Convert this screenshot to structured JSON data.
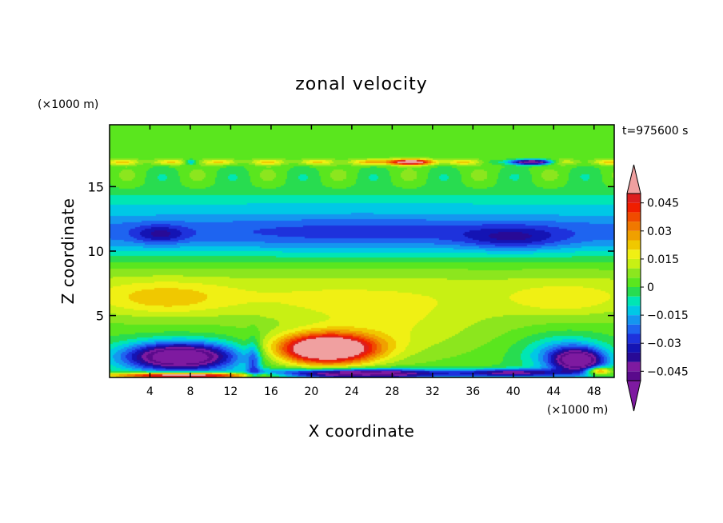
{
  "chart_data": {
    "type": "heatmap",
    "title": "zonal velocity",
    "xlabel": "X coordinate",
    "ylabel": "Z coordinate",
    "x_units": "(×1000 m)",
    "y_units": "(×1000 m)",
    "time_label": "t=975600 s",
    "xlim": [
      0,
      50
    ],
    "ylim": [
      0.2,
      19.8
    ],
    "x_ticks": [
      "4",
      "8",
      "12",
      "16",
      "20",
      "24",
      "28",
      "32",
      "36",
      "40",
      "44",
      "48"
    ],
    "x_tick_values": [
      4,
      8,
      12,
      16,
      20,
      24,
      28,
      32,
      36,
      40,
      44,
      48
    ],
    "y_ticks": [
      "5",
      "10",
      "15"
    ],
    "y_tick_values": [
      5,
      10,
      15
    ],
    "colorbar": {
      "levels": [
        -0.05,
        -0.045,
        -0.04,
        -0.035,
        -0.03,
        -0.025,
        -0.02,
        -0.015,
        -0.01,
        -0.005,
        0,
        0.005,
        0.01,
        0.015,
        0.02,
        0.025,
        0.03,
        0.035,
        0.04,
        0.045,
        0.05
      ],
      "colors": [
        "#5a0a8c",
        "#7e1aa0",
        "#280a96",
        "#1414b4",
        "#1e32dc",
        "#1e64f0",
        "#1496f0",
        "#00c8e6",
        "#00e6b4",
        "#28dc50",
        "#5ae61e",
        "#8ce61e",
        "#c8f014",
        "#f0f014",
        "#f0c800",
        "#f0a000",
        "#f07800",
        "#f04b00",
        "#f01e00",
        "#dc1e1e",
        "#f0a0a0"
      ],
      "tick_labels": [
        "0.045",
        "0.03",
        "0.015",
        "0",
        "−0.015",
        "−0.03",
        "−0.045"
      ],
      "tick_values": [
        0.045,
        0.03,
        0.015,
        0,
        -0.015,
        -0.03,
        -0.045
      ],
      "over_color": "#f0a0a0",
      "under_color": "#7e1aa0"
    },
    "features": [
      {
        "x": 7,
        "z": 1.8,
        "u": -0.05
      },
      {
        "x": 21.5,
        "z": 2.4,
        "u": 0.052
      },
      {
        "x": 5.5,
        "z": 6.3,
        "u": 0.022
      },
      {
        "x": 17,
        "z": 6.5,
        "u": 0.016
      },
      {
        "x": 45,
        "z": 6.2,
        "u": 0.02
      },
      {
        "x": 5,
        "z": 11.3,
        "u": -0.034
      },
      {
        "x": 40,
        "z": 11,
        "u": -0.035
      },
      {
        "x": 25,
        "z": 11.5,
        "u": -0.029
      },
      {
        "x": 29.5,
        "z": 16.9,
        "u": 0.042
      },
      {
        "x": 41.5,
        "z": 16.9,
        "u": -0.045
      },
      {
        "x": 14,
        "z": 1.5,
        "u": -0.008
      },
      {
        "x": 46,
        "z": 1.5,
        "u": -0.045
      },
      {
        "x": 25,
        "z": 0.5,
        "u": -0.05
      },
      {
        "x": 7,
        "z": 0.4,
        "u": 0.05
      }
    ]
  }
}
